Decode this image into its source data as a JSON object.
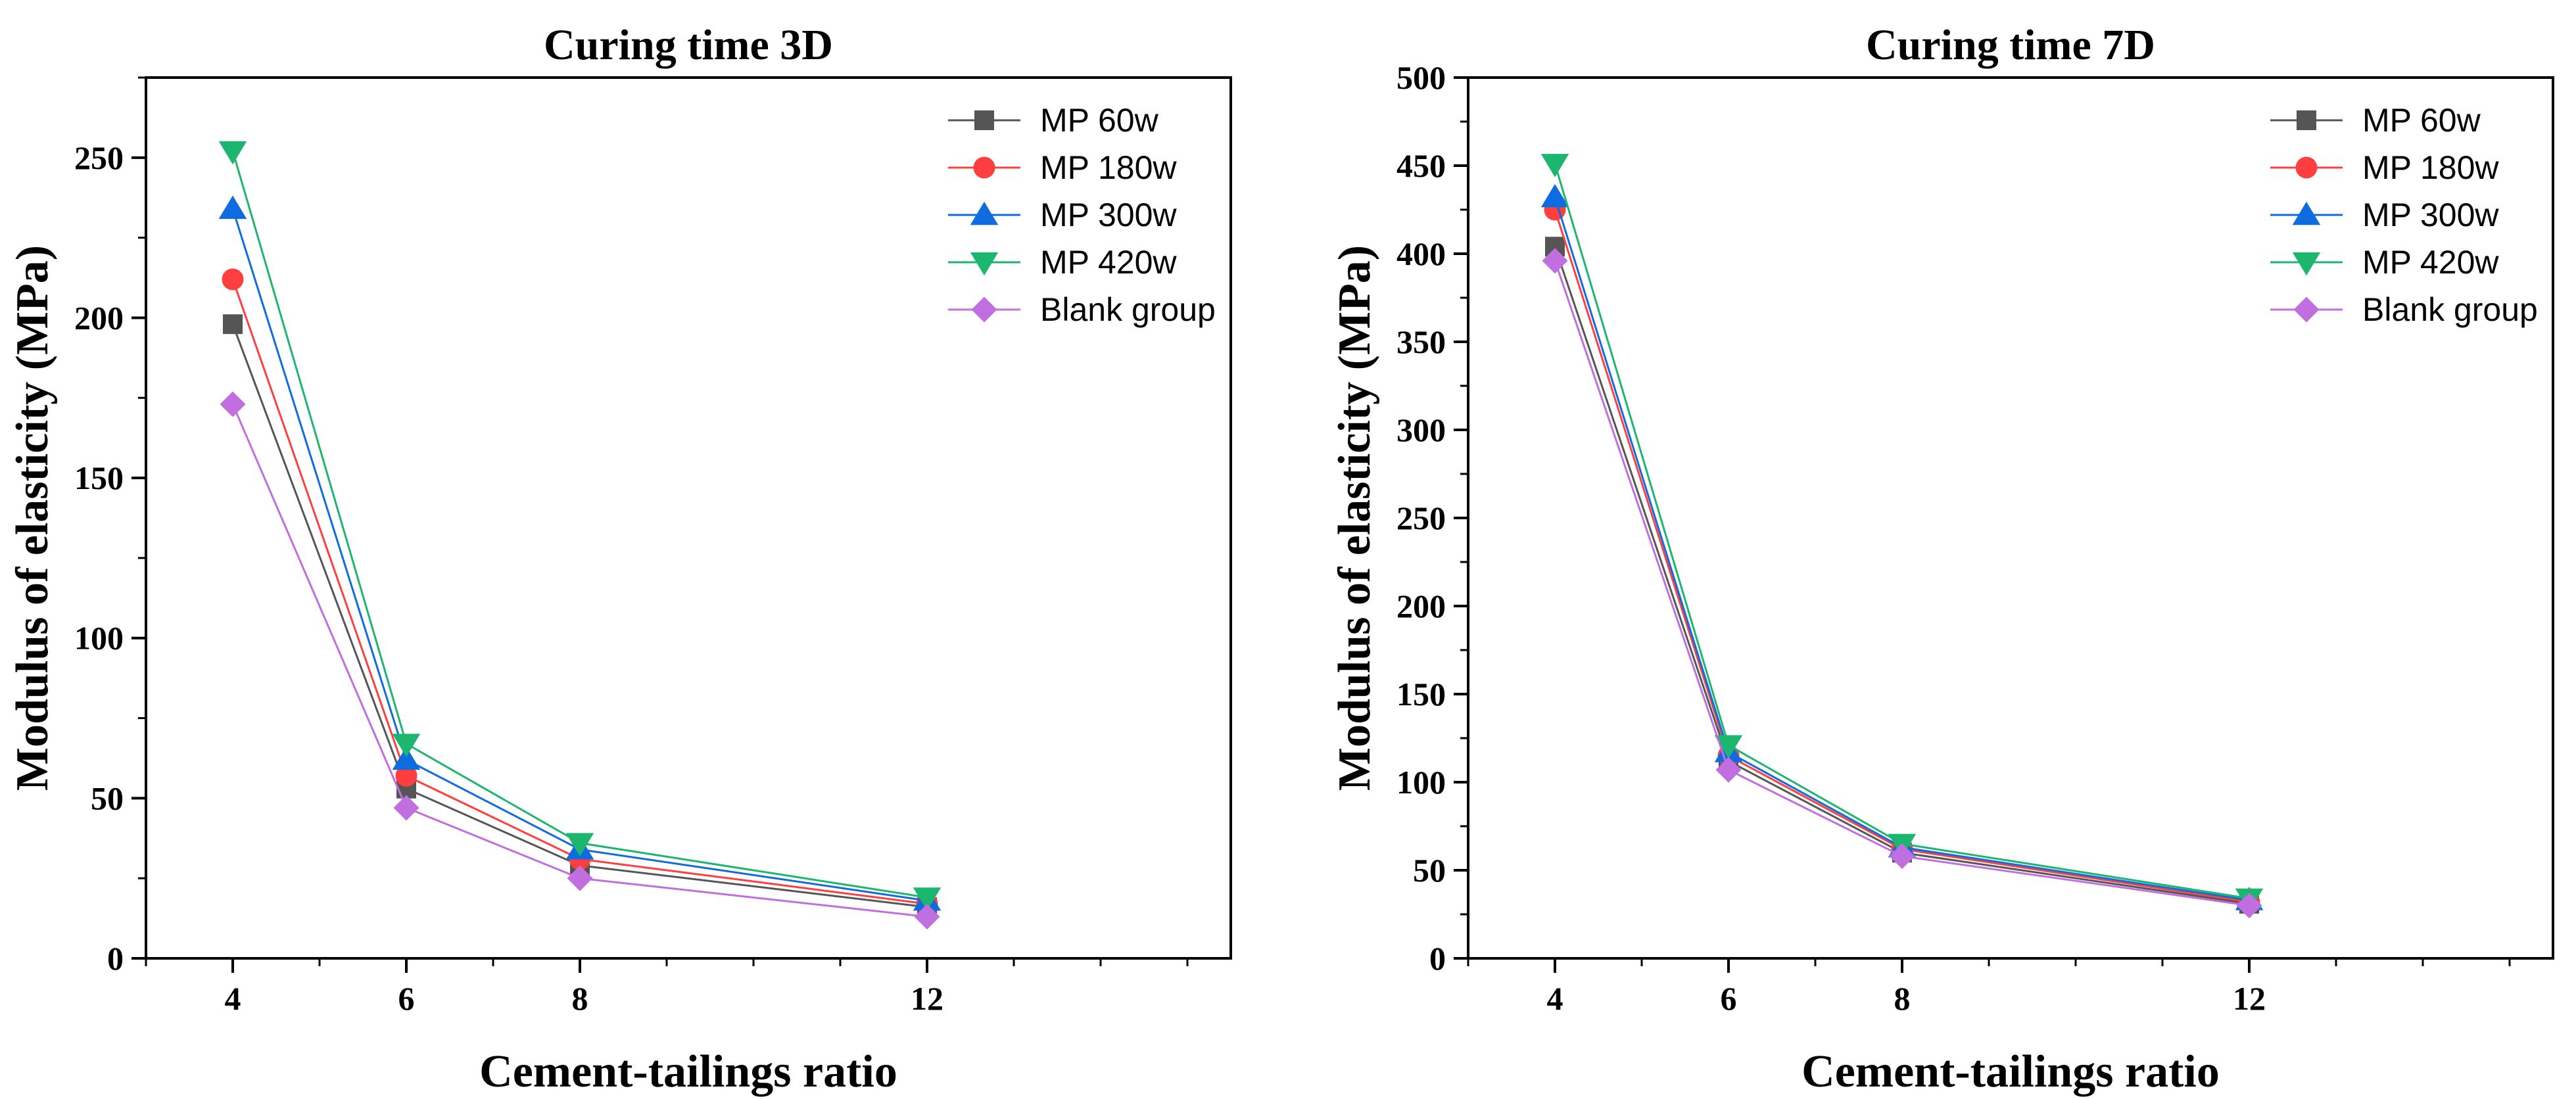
{
  "chart_data": [
    {
      "type": "line",
      "title": "Curing time 3D",
      "xlabel": "Cement-tailings ratio",
      "ylabel": "Modulus of elasticity (MPa)",
      "x": [
        4,
        6,
        8,
        12
      ],
      "xlim": [
        3,
        15.5
      ],
      "ylim": [
        0,
        275
      ],
      "yticks": [
        0,
        50,
        100,
        150,
        200,
        250
      ],
      "xticks": [
        4,
        6,
        8,
        12
      ],
      "legend_position": "top-right",
      "grid": false,
      "series": [
        {
          "name": "MP 60w",
          "values": [
            198,
            53,
            29,
            16
          ],
          "color": "#555555",
          "marker": "square"
        },
        {
          "name": "MP 180w",
          "values": [
            212,
            57,
            31,
            17
          ],
          "color": "#ff3f3f",
          "marker": "circle"
        },
        {
          "name": "MP 300w",
          "values": [
            234,
            62,
            34,
            18
          ],
          "color": "#0f6ce0",
          "marker": "triangle-up"
        },
        {
          "name": "MP 420w",
          "values": [
            252,
            67,
            36,
            19
          ],
          "color": "#1cb66f",
          "marker": "triangle-down"
        },
        {
          "name": "Blank group",
          "values": [
            173,
            47,
            25,
            13
          ],
          "color": "#c06ee0",
          "marker": "diamond"
        }
      ]
    },
    {
      "type": "line",
      "title": "Curing time 7D",
      "xlabel": "Cement-tailings ratio",
      "ylabel": "Modulus of elasticity (MPa)",
      "x": [
        4,
        6,
        8,
        12
      ],
      "xlim": [
        3,
        15.5
      ],
      "ylim": [
        0,
        500
      ],
      "yticks": [
        0,
        50,
        100,
        150,
        200,
        250,
        300,
        350,
        400,
        450,
        500
      ],
      "xticks": [
        4,
        6,
        8,
        12
      ],
      "legend_position": "top-right",
      "grid": false,
      "series": [
        {
          "name": "MP 60w",
          "values": [
            404,
            112,
            60,
            31
          ],
          "color": "#555555",
          "marker": "square"
        },
        {
          "name": "MP 180w",
          "values": [
            425,
            115,
            62,
            32
          ],
          "color": "#ff3f3f",
          "marker": "circle"
        },
        {
          "name": "MP 300w",
          "values": [
            432,
            117,
            63,
            33
          ],
          "color": "#0f6ce0",
          "marker": "triangle-up"
        },
        {
          "name": "MP 420w",
          "values": [
            451,
            121,
            65,
            34
          ],
          "color": "#1cb66f",
          "marker": "triangle-down"
        },
        {
          "name": "Blank group",
          "values": [
            396,
            107,
            58,
            30
          ],
          "color": "#c06ee0",
          "marker": "diamond"
        }
      ]
    }
  ]
}
